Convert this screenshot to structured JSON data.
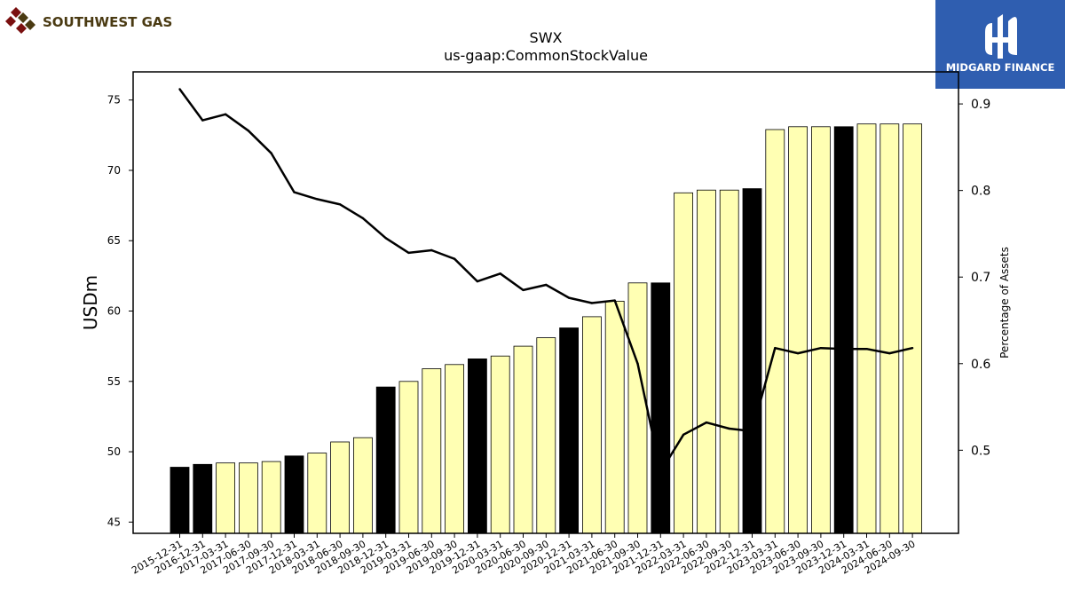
{
  "brand_left": {
    "name": "SOUTHWEST GAS",
    "color": "#4a3a12",
    "mark_color": "#7a1010"
  },
  "brand_right": {
    "name": "MIDGARD FINANCE",
    "bg": "#2f5eb0"
  },
  "chart_data": {
    "type": "bar",
    "title": "SWX",
    "subtitle": "us-gaap:CommonStockValue",
    "ylabel": "USDm",
    "y2label": "Percentage of Assets",
    "ylim": [
      44.2,
      77.0
    ],
    "y2lim": [
      0.404,
      0.937
    ],
    "yticks": [
      45,
      50,
      55,
      60,
      65,
      70,
      75
    ],
    "y2ticks": [
      0.5,
      0.6,
      0.7,
      0.8,
      0.9
    ],
    "categories": [
      "2015-12-31",
      "2016-12-31",
      "2017-03-31",
      "2017-06-30",
      "2017-09-30",
      "2017-12-31",
      "2018-03-31",
      "2018-06-30",
      "2018-09-30",
      "2018-12-31",
      "2019-03-31",
      "2019-06-30",
      "2019-09-30",
      "2019-12-31",
      "2020-03-31",
      "2020-06-30",
      "2020-09-30",
      "2020-12-31",
      "2021-03-31",
      "2021-06-30",
      "2021-09-30",
      "2021-12-31",
      "2022-03-31",
      "2022-06-30",
      "2022-09-30",
      "2022-12-31",
      "2023-03-31",
      "2023-06-30",
      "2023-09-30",
      "2023-12-31",
      "2024-03-31",
      "2024-06-30",
      "2024-09-30"
    ],
    "values": [
      48.9,
      49.1,
      49.2,
      49.2,
      49.3,
      49.7,
      49.9,
      50.7,
      51.0,
      54.6,
      55.0,
      55.9,
      56.2,
      56.6,
      56.8,
      57.5,
      58.1,
      58.8,
      59.6,
      60.7,
      62.0,
      62.0,
      68.4,
      68.6,
      68.6,
      68.7,
      72.9,
      73.1,
      73.1,
      73.1,
      73.3,
      73.3,
      73.3
    ],
    "annual": [
      true,
      true,
      false,
      false,
      false,
      true,
      false,
      false,
      false,
      true,
      false,
      false,
      false,
      true,
      false,
      false,
      false,
      true,
      false,
      false,
      false,
      true,
      false,
      false,
      false,
      true,
      false,
      false,
      false,
      true,
      false,
      false,
      false
    ],
    "ratio": [
      0.917,
      0.881,
      0.888,
      0.869,
      0.843,
      0.798,
      0.79,
      0.784,
      0.768,
      0.745,
      0.728,
      0.731,
      0.721,
      0.695,
      0.704,
      0.685,
      0.691,
      0.676,
      0.67,
      0.673,
      0.6,
      0.475,
      0.518,
      0.532,
      0.525,
      0.522,
      0.618,
      0.612,
      0.618,
      0.617,
      0.617,
      0.612,
      0.618
    ],
    "colors": {
      "annual": "#000000",
      "quarter": "#ffffb3",
      "line": "#000000"
    },
    "grid": false,
    "legend": "none"
  }
}
